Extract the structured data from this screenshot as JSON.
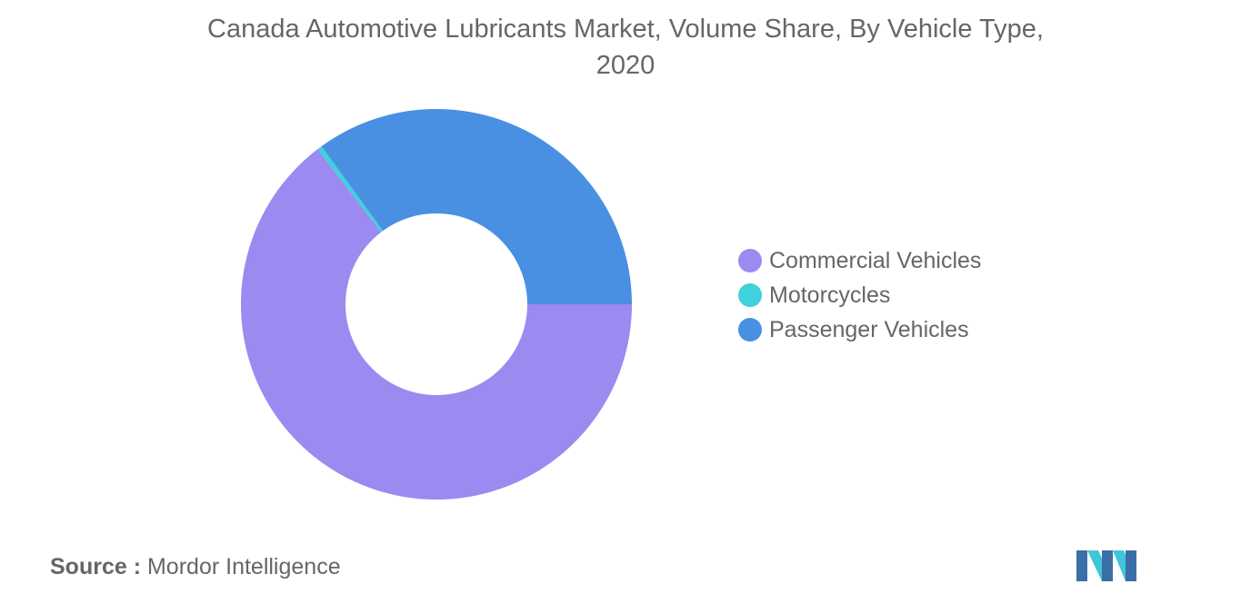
{
  "chart_data": {
    "type": "pie",
    "donut": true,
    "title_line1": "Canada Automotive Lubricants Market, Volume Share, By Vehicle Type,",
    "title_line2": "2020",
    "categories": [
      "Commercial Vehicles",
      "Motorcycles",
      "Passenger Vehicles"
    ],
    "values": [
      64.6,
      0.4,
      35.0
    ],
    "colors": [
      "#9b8af0",
      "#3fd1dc",
      "#4a90e2"
    ],
    "legend_position": "right"
  },
  "source": {
    "key": "Source :",
    "value": "Mordor Intelligence"
  },
  "logo": {
    "icon": "mordor-intelligence-logo",
    "colors": [
      "#3b6fa8",
      "#3fc6d8"
    ]
  }
}
